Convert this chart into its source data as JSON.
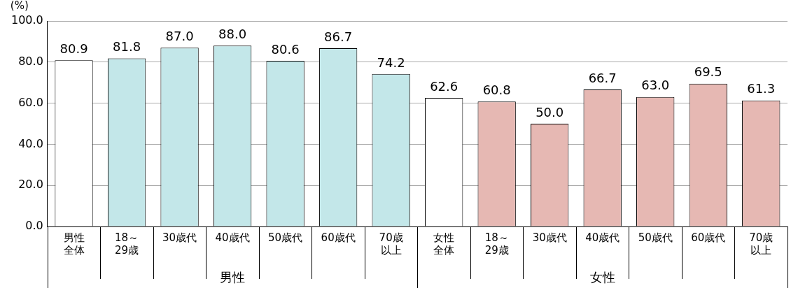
{
  "chart_data": {
    "type": "bar",
    "ylabel": "(%)",
    "categories": [
      "男性全体",
      "18～29歳",
      "30歳代",
      "40歳代",
      "50歳代",
      "60歳代",
      "70歳以上",
      "女性全体",
      "18～29歳",
      "30歳代",
      "40歳代",
      "50歳代",
      "60歳代",
      "70歳以上"
    ],
    "values": [
      80.9,
      81.8,
      87.0,
      88.0,
      80.6,
      86.7,
      74.2,
      62.6,
      60.8,
      50.0,
      66.7,
      63.0,
      69.5,
      61.3
    ],
    "value_labels": [
      "80.9",
      "81.8",
      "87.0",
      "88.0",
      "80.6",
      "86.7",
      "74.2",
      "62.6",
      "60.8",
      "50.0",
      "66.7",
      "63.0",
      "69.5",
      "61.3"
    ],
    "colors": [
      "#ffffff",
      "#c3e7e9",
      "#c3e7e9",
      "#c3e7e9",
      "#c3e7e9",
      "#c3e7e9",
      "#c3e7e9",
      "#ffffff",
      "#e6b8b3",
      "#e6b8b3",
      "#e6b8b3",
      "#e6b8b3",
      "#e6b8b3",
      "#e6b8b3"
    ],
    "ylim": [
      0,
      100
    ],
    "yticks": [
      {
        "value": 0,
        "label": "0.0"
      },
      {
        "value": 20,
        "label": "20.0"
      },
      {
        "value": 40,
        "label": "40.0"
      },
      {
        "value": 60,
        "label": "60.0"
      },
      {
        "value": 80,
        "label": "80.0"
      },
      {
        "value": 100,
        "label": "100.0"
      }
    ],
    "grid": "y",
    "legend": false,
    "annotations": [
      "男性",
      "女性"
    ]
  }
}
